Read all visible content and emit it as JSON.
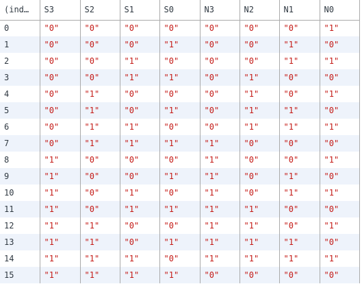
{
  "table": {
    "columns": [
      "(ind…",
      "S3",
      "S2",
      "S1",
      "S0",
      "N3",
      "N2",
      "N1",
      "N0"
    ],
    "rows": [
      {
        "index": "0",
        "values": [
          "\"0\"",
          "\"0\"",
          "\"0\"",
          "\"0\"",
          "\"0\"",
          "\"0\"",
          "\"0\"",
          "\"1\""
        ]
      },
      {
        "index": "1",
        "values": [
          "\"0\"",
          "\"0\"",
          "\"0\"",
          "\"1\"",
          "\"0\"",
          "\"0\"",
          "\"1\"",
          "\"0\""
        ]
      },
      {
        "index": "2",
        "values": [
          "\"0\"",
          "\"0\"",
          "\"1\"",
          "\"0\"",
          "\"0\"",
          "\"0\"",
          "\"1\"",
          "\"1\""
        ]
      },
      {
        "index": "3",
        "values": [
          "\"0\"",
          "\"0\"",
          "\"1\"",
          "\"1\"",
          "\"0\"",
          "\"1\"",
          "\"0\"",
          "\"0\""
        ]
      },
      {
        "index": "4",
        "values": [
          "\"0\"",
          "\"1\"",
          "\"0\"",
          "\"0\"",
          "\"0\"",
          "\"1\"",
          "\"0\"",
          "\"1\""
        ]
      },
      {
        "index": "5",
        "values": [
          "\"0\"",
          "\"1\"",
          "\"0\"",
          "\"1\"",
          "\"0\"",
          "\"1\"",
          "\"1\"",
          "\"0\""
        ]
      },
      {
        "index": "6",
        "values": [
          "\"0\"",
          "\"1\"",
          "\"1\"",
          "\"0\"",
          "\"0\"",
          "\"1\"",
          "\"1\"",
          "\"1\""
        ]
      },
      {
        "index": "7",
        "values": [
          "\"0\"",
          "\"1\"",
          "\"1\"",
          "\"1\"",
          "\"1\"",
          "\"0\"",
          "\"0\"",
          "\"0\""
        ]
      },
      {
        "index": "8",
        "values": [
          "\"1\"",
          "\"0\"",
          "\"0\"",
          "\"0\"",
          "\"1\"",
          "\"0\"",
          "\"0\"",
          "\"1\""
        ]
      },
      {
        "index": "9",
        "values": [
          "\"1\"",
          "\"0\"",
          "\"0\"",
          "\"1\"",
          "\"1\"",
          "\"0\"",
          "\"1\"",
          "\"0\""
        ]
      },
      {
        "index": "10",
        "values": [
          "\"1\"",
          "\"0\"",
          "\"1\"",
          "\"0\"",
          "\"1\"",
          "\"0\"",
          "\"1\"",
          "\"1\""
        ]
      },
      {
        "index": "11",
        "values": [
          "\"1\"",
          "\"0\"",
          "\"1\"",
          "\"1\"",
          "\"1\"",
          "\"1\"",
          "\"0\"",
          "\"0\""
        ]
      },
      {
        "index": "12",
        "values": [
          "\"1\"",
          "\"1\"",
          "\"0\"",
          "\"0\"",
          "\"1\"",
          "\"1\"",
          "\"0\"",
          "\"1\""
        ]
      },
      {
        "index": "13",
        "values": [
          "\"1\"",
          "\"1\"",
          "\"0\"",
          "\"1\"",
          "\"1\"",
          "\"1\"",
          "\"1\"",
          "\"0\""
        ]
      },
      {
        "index": "14",
        "values": [
          "\"1\"",
          "\"1\"",
          "\"1\"",
          "\"0\"",
          "\"1\"",
          "\"1\"",
          "\"1\"",
          "\"1\""
        ]
      },
      {
        "index": "15",
        "values": [
          "\"1\"",
          "\"1\"",
          "\"1\"",
          "\"1\"",
          "\"0\"",
          "\"0\"",
          "\"0\"",
          "\"0\""
        ]
      }
    ]
  },
  "colors": {
    "value_text": "#c41a16",
    "index_text": "#303942",
    "stripe": "#eef3fb",
    "border": "#aaaaaa"
  }
}
